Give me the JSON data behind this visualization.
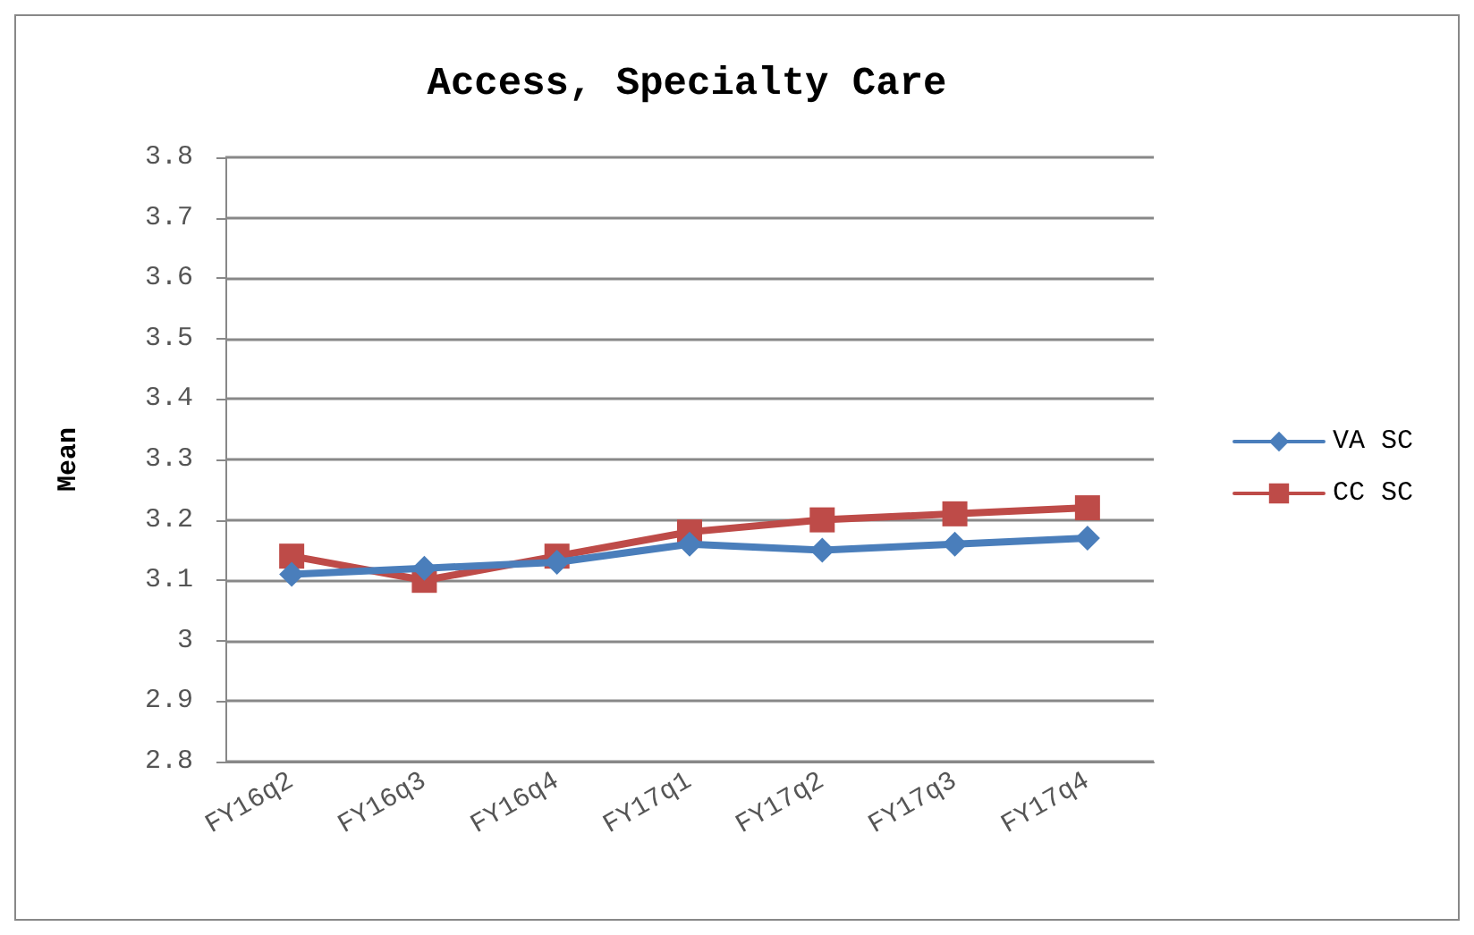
{
  "chart_data": {
    "type": "line",
    "title": "Access, Specialty Care",
    "ylabel": "Mean",
    "categories": [
      "FY16q2",
      "FY16q3",
      "FY16q4",
      "FY17q1",
      "FY17q2",
      "FY17q3",
      "FY17q4"
    ],
    "series": [
      {
        "name": "VA SC",
        "color": "#4a7ebb",
        "marker": "diamond",
        "values": [
          3.11,
          3.12,
          3.13,
          3.16,
          3.15,
          3.16,
          3.17
        ]
      },
      {
        "name": "CC SC",
        "color": "#be4b48",
        "marker": "square",
        "values": [
          3.14,
          3.1,
          3.14,
          3.18,
          3.2,
          3.21,
          3.22
        ]
      }
    ],
    "ylim": [
      2.8,
      3.8
    ],
    "yticks": [
      2.8,
      2.9,
      3,
      3.1,
      3.2,
      3.3,
      3.4,
      3.5,
      3.6,
      3.7,
      3.8
    ],
    "grid": "y",
    "legend": "right"
  }
}
